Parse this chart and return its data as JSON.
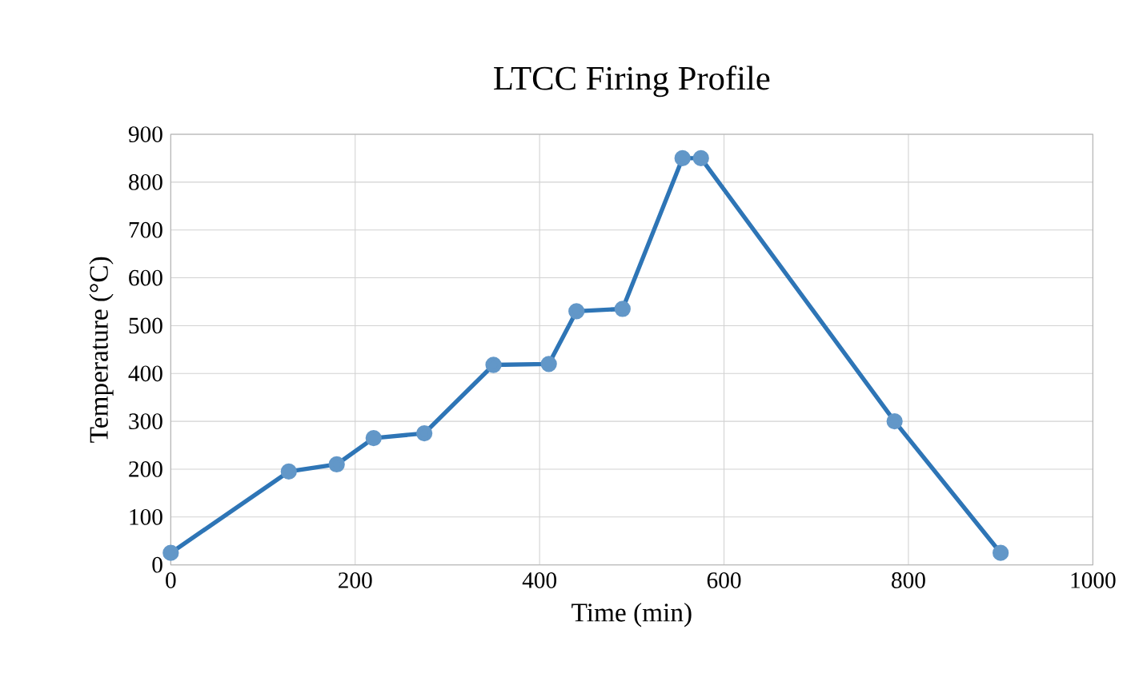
{
  "chart_data": {
    "type": "line",
    "title": "LTCC Firing Profile",
    "xlabel": "Time (min)",
    "ylabel": "Temperature (°C)",
    "x": [
      0,
      128,
      180,
      220,
      275,
      350,
      410,
      440,
      490,
      555,
      575,
      785,
      900
    ],
    "series": [
      {
        "color": "#2e75b6",
        "values": [
          25,
          195,
          210,
          265,
          275,
          418,
          420,
          530,
          535,
          850,
          850,
          300,
          25
        ]
      }
    ],
    "xlim": [
      0,
      1000
    ],
    "xticks": [
      0,
      200,
      400,
      600,
      800,
      1000
    ],
    "ylim": [
      0,
      900
    ],
    "yticks": [
      0,
      100,
      200,
      300,
      400,
      500,
      600,
      700,
      800,
      900
    ],
    "grid": true,
    "marker": "circle",
    "line_style": "solid"
  }
}
